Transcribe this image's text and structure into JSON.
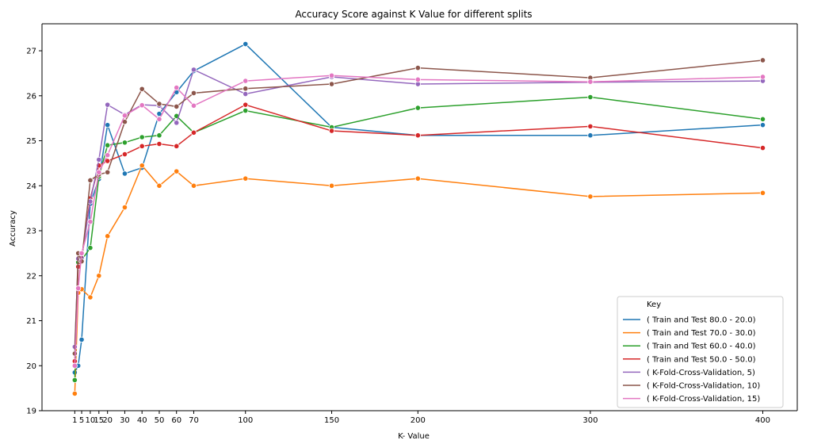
{
  "chart_data": {
    "type": "line",
    "title": "Accuracy Score against K Value for different splits",
    "xlabel": "K- Value",
    "ylabel": "Accuracy",
    "x": [
      1,
      3,
      5,
      10,
      15,
      20,
      30,
      40,
      50,
      60,
      70,
      100,
      150,
      200,
      300,
      400
    ],
    "xticks": [
      1,
      5,
      10,
      15,
      20,
      30,
      40,
      50,
      60,
      70,
      100,
      150,
      200,
      300,
      400
    ],
    "xtick_labels": [
      "1",
      "5",
      "10",
      "15",
      "20",
      "30",
      "40",
      "50",
      "60",
      "70",
      "100",
      "150",
      "200",
      "300",
      "400"
    ],
    "xlim": [
      -18,
      420
    ],
    "ylim": [
      19,
      27.6
    ],
    "yticks": [
      19,
      20,
      21,
      22,
      23,
      24,
      25,
      26,
      27
    ],
    "grid": false,
    "legend": {
      "title": "Key",
      "placement": "lower-right"
    },
    "series": [
      {
        "name": "( Train and Test 80.0 - 20.0)",
        "color": "#1f77b4",
        "values": [
          19.85,
          20.0,
          20.58,
          23.6,
          24.15,
          25.35,
          24.27,
          24.4,
          25.6,
          26.08,
          26.55,
          27.15,
          25.3,
          25.12,
          25.12,
          25.35
        ]
      },
      {
        "name": "( Train and Test 70.0 - 30.0)",
        "color": "#ff7f0e",
        "values": [
          19.38,
          21.62,
          21.7,
          21.52,
          22.0,
          22.88,
          23.52,
          24.45,
          24.0,
          24.32,
          24.0,
          24.16,
          24.0,
          24.16,
          23.76,
          23.84
        ]
      },
      {
        "name": "( Train and Test 60.0 - 40.0)",
        "color": "#2ca02c",
        "values": [
          19.68,
          22.3,
          22.35,
          22.62,
          24.2,
          24.9,
          24.96,
          25.08,
          25.12,
          25.55,
          25.18,
          25.67,
          25.3,
          25.73,
          25.97,
          25.48
        ]
      },
      {
        "name": "( Train and Test 50.0 - 50.0)",
        "color": "#d62728",
        "values": [
          20.1,
          22.2,
          22.4,
          23.72,
          24.45,
          24.55,
          24.7,
          24.88,
          24.93,
          24.88,
          25.18,
          25.8,
          25.22,
          25.12,
          25.32,
          24.84
        ]
      },
      {
        "name": "( K-Fold-Cross-Validation, 5)",
        "color": "#9467bd",
        "values": [
          20.42,
          22.38,
          22.4,
          23.65,
          24.58,
          25.8,
          25.58,
          25.8,
          25.78,
          25.4,
          26.58,
          26.04,
          26.42,
          26.26,
          26.3,
          26.33
        ]
      },
      {
        "name": "( K-Fold-Cross-Validation, 10)",
        "color": "#8c564b",
        "values": [
          20.27,
          22.5,
          22.32,
          24.12,
          24.25,
          24.3,
          25.42,
          26.15,
          25.82,
          25.76,
          26.06,
          26.16,
          26.26,
          26.62,
          26.4,
          26.79
        ]
      },
      {
        "name": "( K-Fold-Cross-Validation, 15)",
        "color": "#e377c2",
        "values": [
          20.0,
          21.72,
          22.5,
          23.2,
          24.3,
          24.68,
          25.56,
          25.79,
          25.48,
          26.18,
          25.78,
          26.33,
          26.45,
          26.36,
          26.31,
          26.42
        ]
      }
    ]
  }
}
